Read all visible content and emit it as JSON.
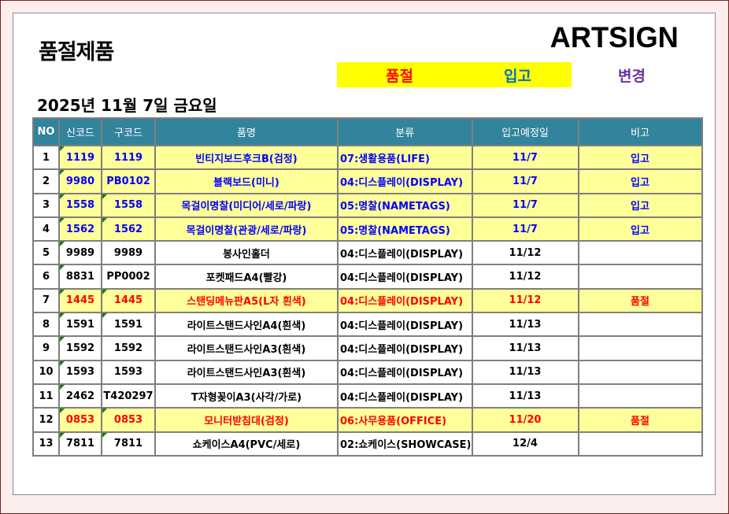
{
  "title": "품절제품",
  "logo": "ARTSIGN",
  "legend": {
    "soldout": "품절",
    "inbound": "입고",
    "changed": "변경"
  },
  "date": "2025년 11월 7일 금요일",
  "colors": {
    "header": "#31849b",
    "highlight": "#ffff99",
    "blue": "#0000ff",
    "red": "#ff0000",
    "purple": "#7030a0",
    "legend_bg": "#ffff00"
  },
  "columns": [
    "NO",
    "신코드",
    "구코드",
    "품명",
    "분류",
    "입고예정일",
    "비고"
  ],
  "rows": [
    {
      "no": "1",
      "new_code": "1119",
      "old_code": "1119",
      "name": "빈티지보드후크B(검정)",
      "category": "07:생활용품(LIFE)",
      "eta": "11/7",
      "note": "입고",
      "style": "blue",
      "old_flag": false
    },
    {
      "no": "2",
      "new_code": "9980",
      "old_code": "PB0102",
      "name": "블랙보드(미니)",
      "category": "04:디스플레이(DISPLAY)",
      "eta": "11/7",
      "note": "입고",
      "style": "blue",
      "old_flag": false
    },
    {
      "no": "3",
      "new_code": "1558",
      "old_code": "1558",
      "name": "목걸이명찰(미디어/세로/파랑)",
      "category": "05:명찰(NAMETAGS)",
      "eta": "11/7",
      "note": "입고",
      "style": "blue",
      "old_flag": true
    },
    {
      "no": "4",
      "new_code": "1562",
      "old_code": "1562",
      "name": "목걸이명찰(관광/세로/파랑)",
      "category": "05:명찰(NAMETAGS)",
      "eta": "11/7",
      "note": "입고",
      "style": "blue",
      "old_flag": true
    },
    {
      "no": "5",
      "new_code": "9989",
      "old_code": "9989",
      "name": "봉사인홀더",
      "category": "04:디스플레이(DISPLAY)",
      "eta": "11/12",
      "note": "",
      "style": "plain",
      "old_flag": false
    },
    {
      "no": "6",
      "new_code": "8831",
      "old_code": "PP0002",
      "name": "포켓패드A4(빨강)",
      "category": "04:디스플레이(DISPLAY)",
      "eta": "11/12",
      "note": "",
      "style": "plain",
      "old_flag": false
    },
    {
      "no": "7",
      "new_code": "1445",
      "old_code": "1445",
      "name": "스탠딩메뉴판A5(L자 흰색)",
      "category": "04:디스플레이(DISPLAY)",
      "eta": "11/12",
      "note": "품절",
      "style": "red",
      "old_flag": true
    },
    {
      "no": "8",
      "new_code": "1591",
      "old_code": "1591",
      "name": "라이트스탠드사인A4(흰색)",
      "category": "04:디스플레이(DISPLAY)",
      "eta": "11/13",
      "note": "",
      "style": "plain",
      "old_flag": true
    },
    {
      "no": "9",
      "new_code": "1592",
      "old_code": "1592",
      "name": "라이트스탠드사인A3(흰색)",
      "category": "04:디스플레이(DISPLAY)",
      "eta": "11/13",
      "note": "",
      "style": "plain",
      "old_flag": false
    },
    {
      "no": "10",
      "new_code": "1593",
      "old_code": "1593",
      "name": "라이트스탠드사인A3(흰색)",
      "category": "04:디스플레이(DISPLAY)",
      "eta": "11/13",
      "note": "",
      "style": "plain",
      "old_flag": false
    },
    {
      "no": "11",
      "new_code": "2462",
      "old_code": "T420297",
      "name": "T자형꽂이A3(사각/가로)",
      "category": "04:디스플레이(DISPLAY)",
      "eta": "11/13",
      "note": "",
      "style": "plain",
      "old_flag": false
    },
    {
      "no": "12",
      "new_code": "0853",
      "old_code": "0853",
      "name": "모니터받침대(검정)",
      "category": "06:사무용품(OFFICE)",
      "eta": "11/20",
      "note": "품절",
      "style": "red",
      "old_flag": true
    },
    {
      "no": "13",
      "new_code": "7811",
      "old_code": "7811",
      "name": "쇼케이스A4(PVC/세로)",
      "category": "02:쇼케이스(SHOWCASE)",
      "eta": "12/4",
      "note": "",
      "style": "plain",
      "old_flag": true
    }
  ]
}
